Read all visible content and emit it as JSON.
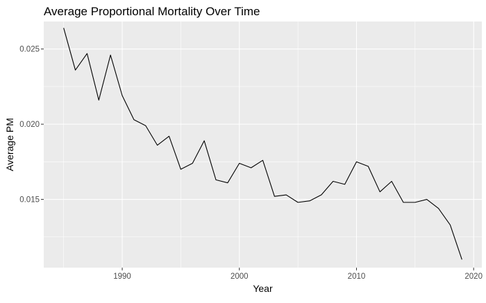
{
  "chart_data": {
    "type": "line",
    "title": "Average Proportional Mortality Over Time",
    "xlabel": "Year",
    "ylabel": "Average PM",
    "xlim": [
      1983.3,
      2020.7
    ],
    "ylim": [
      0.01046,
      0.02683
    ],
    "x_ticks": [
      1990,
      2000,
      2010,
      2020
    ],
    "x_tick_labels": [
      "1990",
      "2000",
      "2010",
      "2020"
    ],
    "y_ticks": [
      0.015,
      0.02,
      0.025
    ],
    "y_tick_labels": [
      "0.015",
      "0.020",
      "0.025"
    ],
    "grid": true,
    "legend": "none",
    "colors": {
      "panel_background": "#ebebeb",
      "grid_major": "#ffffff",
      "line": "#000000"
    },
    "series": [
      {
        "x": [
          1985,
          1986,
          1987,
          1988,
          1989,
          1990,
          1991,
          1992,
          1993,
          1994,
          1995,
          1996,
          1997,
          1998,
          1999,
          2000,
          2001,
          2002,
          2003,
          2004,
          2005,
          2006,
          2007,
          2008,
          2009,
          2010,
          2011,
          2012,
          2013,
          2014,
          2015,
          2016,
          2017,
          2018,
          2019
        ],
        "y": [
          0.0264,
          0.0236,
          0.0247,
          0.0216,
          0.0246,
          0.0219,
          0.0203,
          0.0199,
          0.0186,
          0.0192,
          0.017,
          0.0174,
          0.0189,
          0.0163,
          0.0161,
          0.0174,
          0.0171,
          0.0176,
          0.0152,
          0.0153,
          0.0148,
          0.0149,
          0.0153,
          0.0162,
          0.016,
          0.0175,
          0.0172,
          0.0155,
          0.0162,
          0.0148,
          0.0148,
          0.015,
          0.0144,
          0.0133,
          0.011
        ]
      }
    ]
  }
}
